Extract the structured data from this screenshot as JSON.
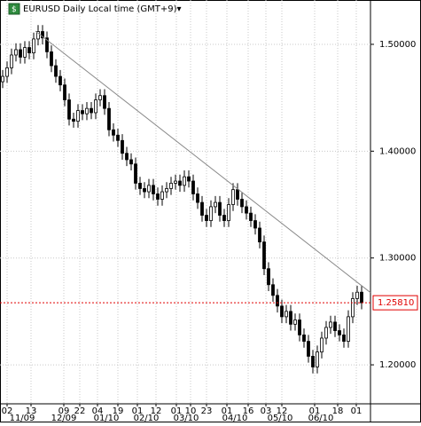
{
  "chart_data": {
    "type": "candlestick",
    "title": "EURUSD Daily Local time (GMT+9)▾",
    "ohlc": [
      [
        1.465,
        1.476,
        1.459,
        1.47
      ],
      [
        1.47,
        1.484,
        1.464,
        1.478
      ],
      [
        1.478,
        1.496,
        1.472,
        1.49
      ],
      [
        1.49,
        1.501,
        1.484,
        1.495
      ],
      [
        1.495,
        1.501,
        1.482,
        1.488
      ],
      [
        1.488,
        1.503,
        1.482,
        1.497
      ],
      [
        1.497,
        1.503,
        1.486,
        1.492
      ],
      [
        1.492,
        1.511,
        1.486,
        1.505
      ],
      [
        1.505,
        1.518,
        1.499,
        1.512
      ],
      [
        1.512,
        1.518,
        1.5,
        1.506
      ],
      [
        1.506,
        1.512,
        1.487,
        1.493
      ],
      [
        1.493,
        1.499,
        1.474,
        1.48
      ],
      [
        1.48,
        1.486,
        1.464,
        1.47
      ],
      [
        1.47,
        1.476,
        1.456,
        1.462
      ],
      [
        1.462,
        1.468,
        1.442,
        1.448
      ],
      [
        1.448,
        1.454,
        1.424,
        1.43
      ],
      [
        1.43,
        1.436,
        1.422,
        1.428
      ],
      [
        1.428,
        1.444,
        1.422,
        1.438
      ],
      [
        1.438,
        1.444,
        1.429,
        1.435
      ],
      [
        1.435,
        1.446,
        1.429,
        1.44
      ],
      [
        1.44,
        1.446,
        1.43,
        1.436
      ],
      [
        1.436,
        1.454,
        1.43,
        1.448
      ],
      [
        1.448,
        1.458,
        1.442,
        1.452
      ],
      [
        1.452,
        1.458,
        1.434,
        1.44
      ],
      [
        1.44,
        1.446,
        1.414,
        1.42
      ],
      [
        1.42,
        1.426,
        1.409,
        1.415
      ],
      [
        1.415,
        1.421,
        1.404,
        1.41
      ],
      [
        1.41,
        1.416,
        1.392,
        1.398
      ],
      [
        1.398,
        1.404,
        1.386,
        1.392
      ],
      [
        1.392,
        1.398,
        1.382,
        1.388
      ],
      [
        1.388,
        1.394,
        1.364,
        1.37
      ],
      [
        1.37,
        1.376,
        1.359,
        1.365
      ],
      [
        1.365,
        1.371,
        1.356,
        1.362
      ],
      [
        1.362,
        1.374,
        1.356,
        1.368
      ],
      [
        1.368,
        1.374,
        1.354,
        1.36
      ],
      [
        1.36,
        1.366,
        1.349,
        1.355
      ],
      [
        1.355,
        1.368,
        1.349,
        1.362
      ],
      [
        1.362,
        1.371,
        1.356,
        1.365
      ],
      [
        1.365,
        1.376,
        1.359,
        1.37
      ],
      [
        1.37,
        1.378,
        1.364,
        1.372
      ],
      [
        1.372,
        1.378,
        1.362,
        1.368
      ],
      [
        1.368,
        1.382,
        1.362,
        1.376
      ],
      [
        1.376,
        1.382,
        1.366,
        1.372
      ],
      [
        1.372,
        1.378,
        1.354,
        1.36
      ],
      [
        1.36,
        1.366,
        1.346,
        1.352
      ],
      [
        1.352,
        1.358,
        1.334,
        1.34
      ],
      [
        1.34,
        1.346,
        1.329,
        1.335
      ],
      [
        1.335,
        1.354,
        1.329,
        1.348
      ],
      [
        1.348,
        1.358,
        1.342,
        1.352
      ],
      [
        1.352,
        1.358,
        1.334,
        1.34
      ],
      [
        1.34,
        1.346,
        1.329,
        1.335
      ],
      [
        1.335,
        1.356,
        1.329,
        1.35
      ],
      [
        1.35,
        1.37,
        1.344,
        1.364
      ],
      [
        1.364,
        1.37,
        1.349,
        1.355
      ],
      [
        1.355,
        1.361,
        1.342,
        1.348
      ],
      [
        1.348,
        1.354,
        1.336,
        1.342
      ],
      [
        1.342,
        1.348,
        1.329,
        1.335
      ],
      [
        1.335,
        1.341,
        1.322,
        1.328
      ],
      [
        1.328,
        1.334,
        1.309,
        1.315
      ],
      [
        1.315,
        1.321,
        1.284,
        1.29
      ],
      [
        1.29,
        1.296,
        1.269,
        1.275
      ],
      [
        1.275,
        1.281,
        1.259,
        1.265
      ],
      [
        1.265,
        1.271,
        1.249,
        1.255
      ],
      [
        1.255,
        1.261,
        1.239,
        1.245
      ],
      [
        1.245,
        1.256,
        1.239,
        1.25
      ],
      [
        1.25,
        1.256,
        1.232,
        1.238
      ],
      [
        1.238,
        1.248,
        1.232,
        1.242
      ],
      [
        1.242,
        1.248,
        1.222,
        1.228
      ],
      [
        1.228,
        1.234,
        1.216,
        1.222
      ],
      [
        1.222,
        1.228,
        1.202,
        1.208
      ],
      [
        1.208,
        1.214,
        1.192,
        1.198
      ],
      [
        1.198,
        1.218,
        1.192,
        1.212
      ],
      [
        1.212,
        1.231,
        1.206,
        1.225
      ],
      [
        1.225,
        1.241,
        1.219,
        1.235
      ],
      [
        1.235,
        1.246,
        1.229,
        1.24
      ],
      [
        1.24,
        1.246,
        1.226,
        1.232
      ],
      [
        1.232,
        1.238,
        1.222,
        1.228
      ],
      [
        1.228,
        1.234,
        1.216,
        1.222
      ],
      [
        1.222,
        1.251,
        1.216,
        1.245
      ],
      [
        1.245,
        1.268,
        1.239,
        1.262
      ],
      [
        1.262,
        1.274,
        1.256,
        1.268
      ],
      [
        1.268,
        1.274,
        1.252,
        1.2581
      ]
    ],
    "up_color": "#ffffff",
    "down_color": "#000000",
    "wick_color": "#000000",
    "xlim": [
      -0.6,
      83
    ],
    "xticks": [
      {
        "value": 1,
        "label": "02"
      },
      {
        "value": 6.4,
        "label": "13"
      },
      {
        "value": 13.8,
        "label": "09"
      },
      {
        "value": 17.4,
        "label": "22"
      },
      {
        "value": 21.4,
        "label": "04"
      },
      {
        "value": 26,
        "label": "19"
      },
      {
        "value": 30.4,
        "label": "01"
      },
      {
        "value": 34.6,
        "label": "12"
      },
      {
        "value": 39.2,
        "label": "01"
      },
      {
        "value": 42.4,
        "label": "10"
      },
      {
        "value": 46,
        "label": "23"
      },
      {
        "value": 50.6,
        "label": "01"
      },
      {
        "value": 55.4,
        "label": "16"
      },
      {
        "value": 59.4,
        "label": "03"
      },
      {
        "value": 63,
        "label": "12"
      },
      {
        "value": 70.4,
        "label": "01"
      },
      {
        "value": 75.6,
        "label": "18"
      },
      {
        "value": 79.8,
        "label": "01"
      }
    ],
    "month_ticks": [
      {
        "value": 4.4,
        "label": "11/09"
      },
      {
        "value": 13.8,
        "label": "12/09"
      },
      {
        "value": 23.4,
        "label": "01/10"
      },
      {
        "value": 32.4,
        "label": "02/10"
      },
      {
        "value": 41.4,
        "label": "03/10"
      },
      {
        "value": 52.4,
        "label": "04/10"
      },
      {
        "value": 62.6,
        "label": "05/10"
      },
      {
        "value": 71.8,
        "label": "06/10"
      }
    ],
    "ylim": [
      1.1635,
      1.5415
    ],
    "yticks": [
      {
        "value": 1.2,
        "label": "1.20000"
      },
      {
        "value": 1.3,
        "label": "1.30000"
      },
      {
        "value": 1.4,
        "label": "1.40000"
      },
      {
        "value": 1.5,
        "label": "1.50000"
      }
    ],
    "grid": true,
    "trendline": {
      "from": [
        7.4,
        1.5124
      ],
      "to": [
        83,
        1.2676
      ],
      "color": "#888888"
    },
    "last_price": {
      "value": 1.2581,
      "label": "1.25810",
      "color": "#e00000"
    }
  }
}
